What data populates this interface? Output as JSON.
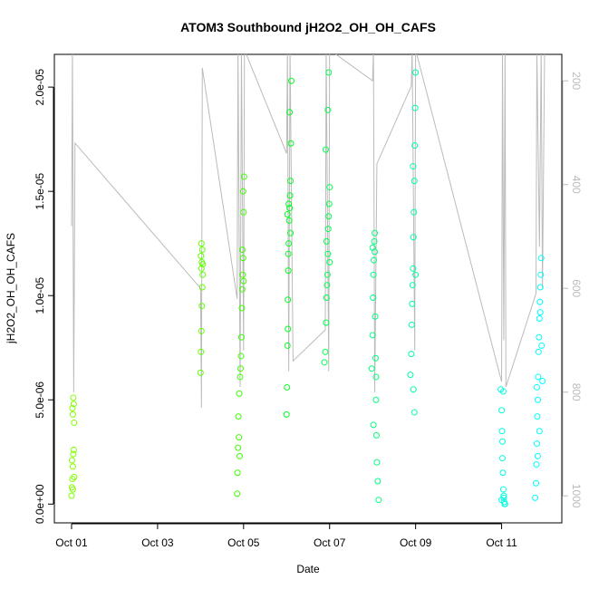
{
  "chart_data": {
    "type": "scatter",
    "title": "ATOM3 Southbound jH2O2_OH_OH_CAFS",
    "x_label": "Date",
    "y_label": "jH2O2_OH_OH_CAFS",
    "xlim": [
      0.6,
      12.4
    ],
    "xticks": [
      {
        "value": 1,
        "label": "Oct 01"
      },
      {
        "value": 3,
        "label": "Oct 03"
      },
      {
        "value": 5,
        "label": "Oct 05"
      },
      {
        "value": 7,
        "label": "Oct 07"
      },
      {
        "value": 9,
        "label": "Oct 09"
      },
      {
        "value": 11,
        "label": "Oct 11"
      }
    ],
    "ylim": [
      -9e-07,
      2.157e-05
    ],
    "yticks": [
      {
        "value": 0,
        "label": "0.0e+00"
      },
      {
        "value": 5e-06,
        "label": "5.0e-06"
      },
      {
        "value": 1e-05,
        "label": "1.0e-05"
      },
      {
        "value": 1.5e-05,
        "label": "1.5e-05"
      },
      {
        "value": 2e-05,
        "label": "2.0e-05"
      }
    ],
    "y2lim": [
      1052,
      149
    ],
    "y2ticks": [
      200,
      400,
      600,
      800,
      1000
    ],
    "y2_color": "#bbbbbb",
    "series": [
      {
        "color": "#80ff00",
        "x": [
          1.0,
          1.01,
          1.02,
          1.03,
          1.04,
          1.05,
          1.06,
          1.03,
          1.02,
          1.05,
          1.04,
          1.06,
          1.01,
          1.03
        ],
        "values": [
          4e-07,
          8e-07,
          1.2e-06,
          1.8e-06,
          2.4e-06,
          2.6e-06,
          3.9e-06,
          4.3e-06,
          4.6e-06,
          4.8e-06,
          5.1e-06,
          1.3e-06,
          2.1e-06,
          7e-07
        ]
      },
      {
        "color": "#60ff00",
        "x": [
          4.0,
          4.01,
          4.02,
          4.03,
          4.04,
          4.05,
          4.02,
          4.03,
          4.01,
          4.04,
          4.02,
          4.05
        ],
        "values": [
          6.3e-06,
          7.3e-06,
          8.3e-06,
          9.5e-06,
          1.04e-05,
          1.1e-05,
          1.13e-05,
          1.16e-05,
          1.19e-05,
          1.22e-05,
          1.25e-05,
          1.15e-05
        ]
      },
      {
        "color": "#40ff00",
        "x": [
          4.85,
          4.86,
          4.87,
          4.88,
          4.9,
          4.92,
          4.94,
          4.95,
          4.96,
          4.97,
          4.98,
          4.99,
          5.0,
          5.01,
          4.89,
          4.93,
          4.97,
          4.99,
          4.91,
          5.0
        ],
        "values": [
          5e-07,
          1.5e-06,
          2.7e-06,
          4.2e-06,
          5.3e-06,
          6.1e-06,
          7.1e-06,
          8e-06,
          9.4e-06,
          1.03e-05,
          1.1e-05,
          1.18e-05,
          1.4e-05,
          1.57e-05,
          3.2e-06,
          6.5e-06,
          1.22e-05,
          1.5e-05,
          2.3e-06,
          1.07e-05
        ]
      },
      {
        "color": "#00ff20",
        "x": [
          6.0,
          6.01,
          6.02,
          6.03,
          6.04,
          6.05,
          6.06,
          6.07,
          6.08,
          6.09,
          6.1,
          6.11,
          6.02,
          6.05,
          6.07,
          6.03,
          6.09,
          6.04
        ],
        "values": [
          4.3e-06,
          5.6e-06,
          7.6e-06,
          9.8e-06,
          1.12e-05,
          1.25e-05,
          1.36e-05,
          1.42e-05,
          1.48e-05,
          1.55e-05,
          1.73e-05,
          2.03e-05,
          1.39e-05,
          1.44e-05,
          1.88e-05,
          8.4e-06,
          1.3e-05,
          1.2e-05
        ]
      },
      {
        "color": "#00ff50",
        "x": [
          6.88,
          6.9,
          6.92,
          6.93,
          6.94,
          6.95,
          6.96,
          6.97,
          6.98,
          6.99,
          7.0,
          6.91,
          6.96,
          6.98,
          6.93,
          7.0
        ],
        "values": [
          6.8e-06,
          7.3e-06,
          8.7e-06,
          9.9e-06,
          1.05e-05,
          1.1e-05,
          1.2e-05,
          1.32e-05,
          1.38e-05,
          1.44e-05,
          1.52e-05,
          1.7e-05,
          1.89e-05,
          2.07e-05,
          1.26e-05,
          1.16e-05
        ]
      },
      {
        "color": "#00ff80",
        "x": [
          7.98,
          8.0,
          8.01,
          8.02,
          8.03,
          8.04,
          8.05,
          8.06,
          8.07,
          8.08,
          8.09,
          8.1,
          8.12,
          8.14,
          8.02,
          8.05,
          8.08,
          8.0
        ],
        "values": [
          6.5e-06,
          8.1e-06,
          9.9e-06,
          1.1e-05,
          1.17e-05,
          1.26e-05,
          1.3e-05,
          9e-06,
          7e-06,
          5e-06,
          3.3e-06,
          2e-06,
          1.1e-06,
          2e-07,
          3.8e-06,
          1.21e-05,
          6.1e-06,
          1.23e-05
        ]
      },
      {
        "color": "#00ffa0",
        "x": [
          8.88,
          8.9,
          8.91,
          8.92,
          8.93,
          8.94,
          8.95,
          8.96,
          8.97,
          8.98,
          8.99,
          9.0,
          8.94,
          8.97,
          8.95,
          9.0
        ],
        "values": [
          6.2e-06,
          7.2e-06,
          8.6e-06,
          9.6e-06,
          1.05e-05,
          1.13e-05,
          1.28e-05,
          1.4e-05,
          1.55e-05,
          1.72e-05,
          1.9e-05,
          2.07e-05,
          1.62e-05,
          4.4e-06,
          5.5e-06,
          1.1e-05
        ]
      },
      {
        "color": "#00ffe0",
        "x": [
          10.98,
          11.0,
          11.01,
          11.02,
          11.03,
          11.04,
          11.05,
          11.06,
          11.07,
          11.08,
          11.02,
          11.05,
          11.0,
          11.04
        ],
        "values": [
          5.5e-06,
          4.5e-06,
          3.5e-06,
          3e-06,
          1.5e-06,
          7e-07,
          3e-07,
          1e-07,
          0,
          0,
          2.2e-06,
          4e-07,
          2e-07,
          5.4e-06
        ]
      },
      {
        "color": "#00ffff",
        "x": [
          11.78,
          11.8,
          11.81,
          11.82,
          11.83,
          11.84,
          11.85,
          11.86,
          11.87,
          11.88,
          11.89,
          11.9,
          11.91,
          11.92,
          11.93,
          11.95,
          11.84,
          11.88,
          11.9,
          11.82
        ],
        "values": [
          3e-07,
          1e-06,
          1.9e-06,
          2.9e-06,
          4.2e-06,
          5e-06,
          6.1e-06,
          7.3e-06,
          8e-06,
          8.9e-06,
          9.7e-06,
          1.04e-05,
          1.1e-05,
          1.18e-05,
          7.6e-06,
          5.9e-06,
          2.3e-06,
          3.5e-06,
          9.2e-06,
          5.6e-06
        ]
      },
      {
        "color": "#bbbbbb",
        "axis": "y2",
        "kind": "line",
        "x": [
          1.0,
          1.02,
          1.05,
          1.08,
          4.0,
          4.02,
          4.04,
          4.85,
          4.87,
          4.92,
          4.95,
          5.0,
          5.02,
          6.0,
          6.02,
          6.05,
          6.08,
          6.15,
          6.9,
          6.92,
          6.98,
          7.0,
          8.0,
          8.02,
          8.05,
          8.1,
          8.9,
          8.92,
          8.98,
          9.0,
          11.0,
          11.02,
          11.05,
          11.08,
          11.1,
          11.8,
          11.82,
          11.88,
          11.92,
          11.95,
          12.0
        ],
        "values": [
          480,
          140,
          800,
          320,
          600,
          830,
          175,
          620,
          140,
          790,
          140,
          720,
          140,
          340,
          140,
          760,
          140,
          740,
          680,
          140,
          760,
          140,
          200,
          140,
          800,
          360,
          210,
          140,
          720,
          140,
          780,
          140,
          700,
          140,
          790,
          610,
          140,
          520,
          140,
          600,
          140
        ]
      }
    ]
  }
}
